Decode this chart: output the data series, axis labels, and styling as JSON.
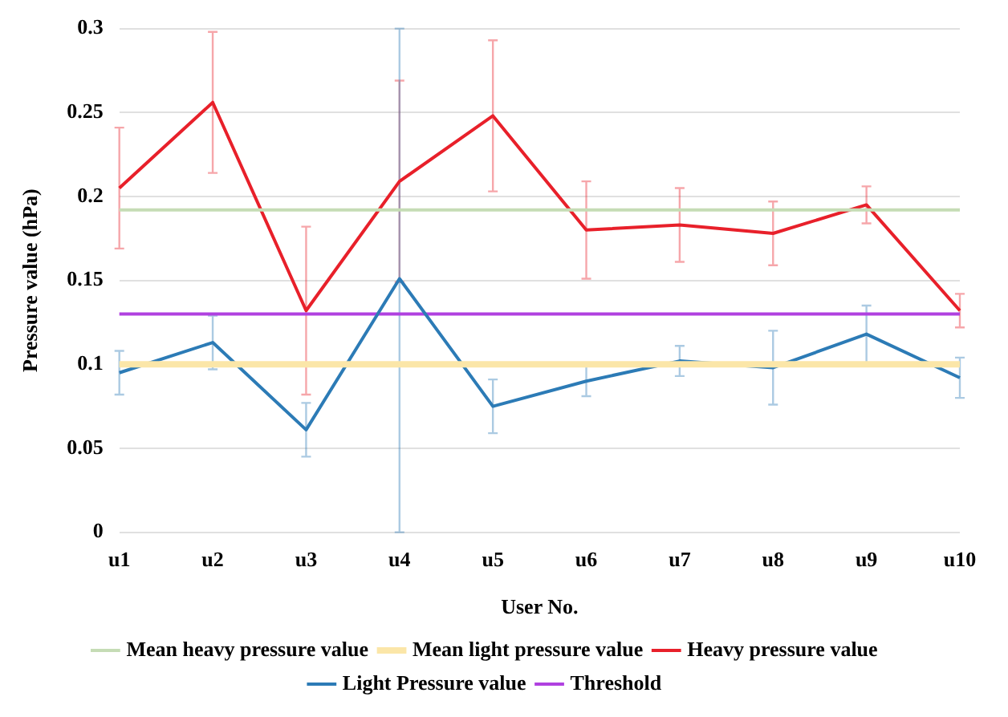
{
  "chart_data": {
    "type": "line",
    "xlabel": "User No.",
    "ylabel": "Pressure value (hPa)",
    "categories": [
      "u1",
      "u2",
      "u3",
      "u4",
      "u5",
      "u6",
      "u7",
      "u8",
      "u9",
      "u10"
    ],
    "series": [
      {
        "name": "Mean heavy pressure value",
        "color": "#c5dcb5",
        "values": [
          0.192,
          0.192,
          0.192,
          0.192,
          0.192,
          0.192,
          0.192,
          0.192,
          0.192,
          0.192
        ]
      },
      {
        "name": "Mean light pressure value",
        "color": "#fbe6a8",
        "values": [
          0.1,
          0.1,
          0.1,
          0.1,
          0.1,
          0.1,
          0.1,
          0.1,
          0.1,
          0.1
        ]
      },
      {
        "name": "Heavy pressure value",
        "color": "#e8202a",
        "values": [
          0.205,
          0.256,
          0.132,
          0.209,
          0.248,
          0.18,
          0.183,
          0.178,
          0.195,
          0.132
        ],
        "errors": [
          0.036,
          0.042,
          0.05,
          0.06,
          0.045,
          0.029,
          0.022,
          0.019,
          0.011,
          0.01
        ]
      },
      {
        "name": "Light Pressure value",
        "color": "#2c7bb6",
        "values": [
          0.095,
          0.113,
          0.061,
          0.151,
          0.075,
          0.09,
          0.102,
          0.098,
          0.118,
          0.092
        ],
        "errors": [
          0.013,
          0.016,
          0.016,
          [
            0,
            0.3
          ],
          0.016,
          0.009,
          0.009,
          0.022,
          0.017,
          0.012
        ]
      },
      {
        "name": "Threshold",
        "color": "#b041e0",
        "values": [
          0.13,
          0.13,
          0.13,
          0.13,
          0.13,
          0.13,
          0.13,
          0.13,
          0.13,
          0.13
        ]
      }
    ],
    "ylim": [
      0,
      0.3
    ],
    "yticks": [
      0,
      0.05,
      0.1,
      0.15,
      0.2,
      0.25,
      0.3
    ],
    "grid": "y",
    "legend": "bottom",
    "marker": "none",
    "line_style": "solid"
  }
}
